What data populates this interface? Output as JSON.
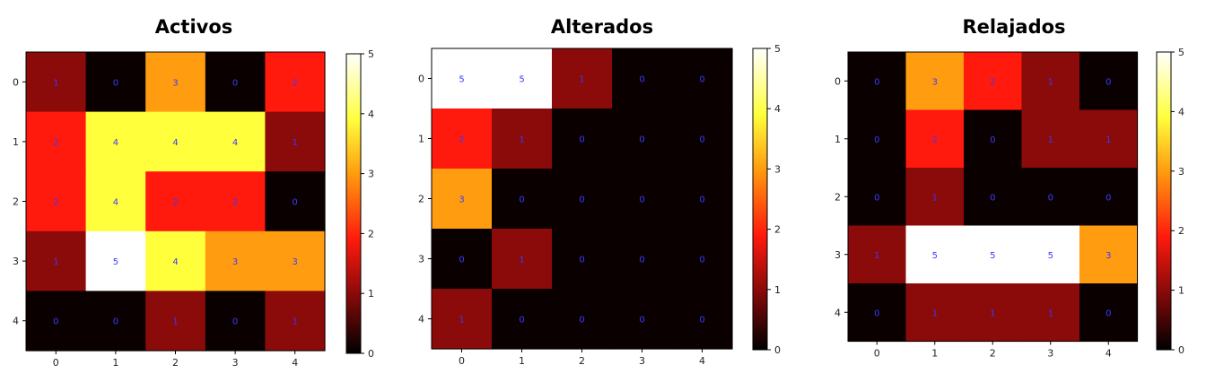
{
  "chart_data": [
    {
      "type": "heatmap",
      "title": "Activos",
      "x": [
        0,
        1,
        2,
        3,
        4
      ],
      "y": [
        0,
        1,
        2,
        3,
        4
      ],
      "values": [
        [
          1,
          0,
          3,
          0,
          2
        ],
        [
          2,
          4,
          4,
          4,
          1
        ],
        [
          2,
          4,
          2,
          2,
          0
        ],
        [
          1,
          5,
          4,
          3,
          3
        ],
        [
          0,
          0,
          1,
          0,
          1
        ]
      ],
      "colormap": "hot",
      "colorbar": {
        "range": [
          0,
          5
        ],
        "ticks": [
          0,
          1,
          2,
          3,
          4,
          5
        ]
      },
      "grid": false
    },
    {
      "type": "heatmap",
      "title": "Alterados",
      "x": [
        0,
        1,
        2,
        3,
        4
      ],
      "y": [
        0,
        1,
        2,
        3,
        4
      ],
      "values": [
        [
          5,
          5,
          1,
          0,
          0
        ],
        [
          2,
          1,
          0,
          0,
          0
        ],
        [
          3,
          0,
          0,
          0,
          0
        ],
        [
          0,
          1,
          0,
          0,
          0
        ],
        [
          1,
          0,
          0,
          0,
          0
        ]
      ],
      "colormap": "hot",
      "colorbar": {
        "range": [
          0,
          5
        ],
        "ticks": [
          0,
          1,
          2,
          3,
          4,
          5
        ]
      },
      "grid": false
    },
    {
      "type": "heatmap",
      "title": "Relajados",
      "x": [
        0,
        1,
        2,
        3,
        4
      ],
      "y": [
        0,
        1,
        2,
        3,
        4
      ],
      "values": [
        [
          0,
          3,
          2,
          1,
          0
        ],
        [
          0,
          2,
          0,
          1,
          1
        ],
        [
          0,
          1,
          0,
          0,
          0
        ],
        [
          1,
          5,
          5,
          5,
          3
        ],
        [
          0,
          1,
          1,
          1,
          0
        ]
      ],
      "colormap": "hot",
      "colorbar": {
        "range": [
          0,
          5
        ],
        "ticks": [
          0,
          1,
          2,
          3,
          4,
          5
        ]
      },
      "grid": false
    }
  ],
  "colors": {
    "v0": "#0b0000",
    "v1": "#8b0a0a",
    "v2": "#ff1a0d",
    "v3": "#ff9c0f",
    "v4": "#ffff3c",
    "v5": "#ffffff",
    "cell_text": "#3a3aff"
  }
}
